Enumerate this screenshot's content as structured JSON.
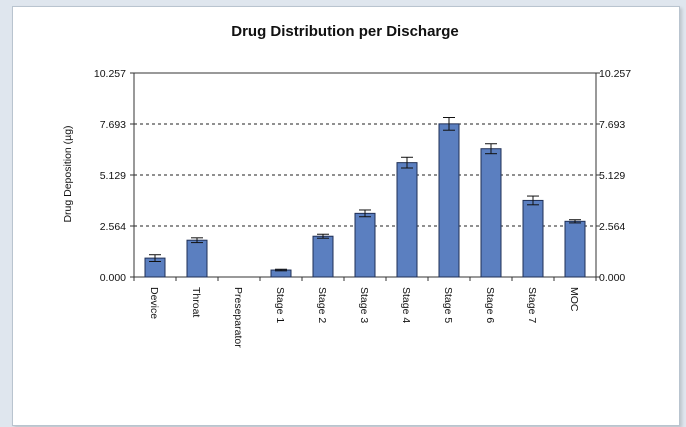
{
  "chart_data": {
    "type": "bar",
    "title": "Drug Distribution per Discharge",
    "ylabel": "Drug Deposition (µg)",
    "xlabel": "",
    "ylim": [
      0,
      10.257
    ],
    "yticks": [
      "0.000",
      "2.564",
      "5.129",
      "7.693",
      "10.257"
    ],
    "ytick_values": [
      0,
      2.564,
      5.129,
      7.693,
      10.257
    ],
    "categories": [
      "Device",
      "Throat",
      "Preseparator",
      "Stage 1",
      "Stage 2",
      "Stage 3",
      "Stage 4",
      "Stage 5",
      "Stage 6",
      "Stage 7",
      "MOC"
    ],
    "values": [
      0.95,
      1.85,
      0.0,
      0.35,
      2.05,
      3.2,
      5.75,
      7.7,
      6.45,
      3.85,
      2.8
    ],
    "errors": [
      0.17,
      0.12,
      0.0,
      0.04,
      0.1,
      0.17,
      0.27,
      0.32,
      0.25,
      0.22,
      0.08
    ],
    "grid": "dashed horizontal at y ticks",
    "bar_color": "#5b7fc0",
    "bar_edge_color": "#1f2f55"
  }
}
